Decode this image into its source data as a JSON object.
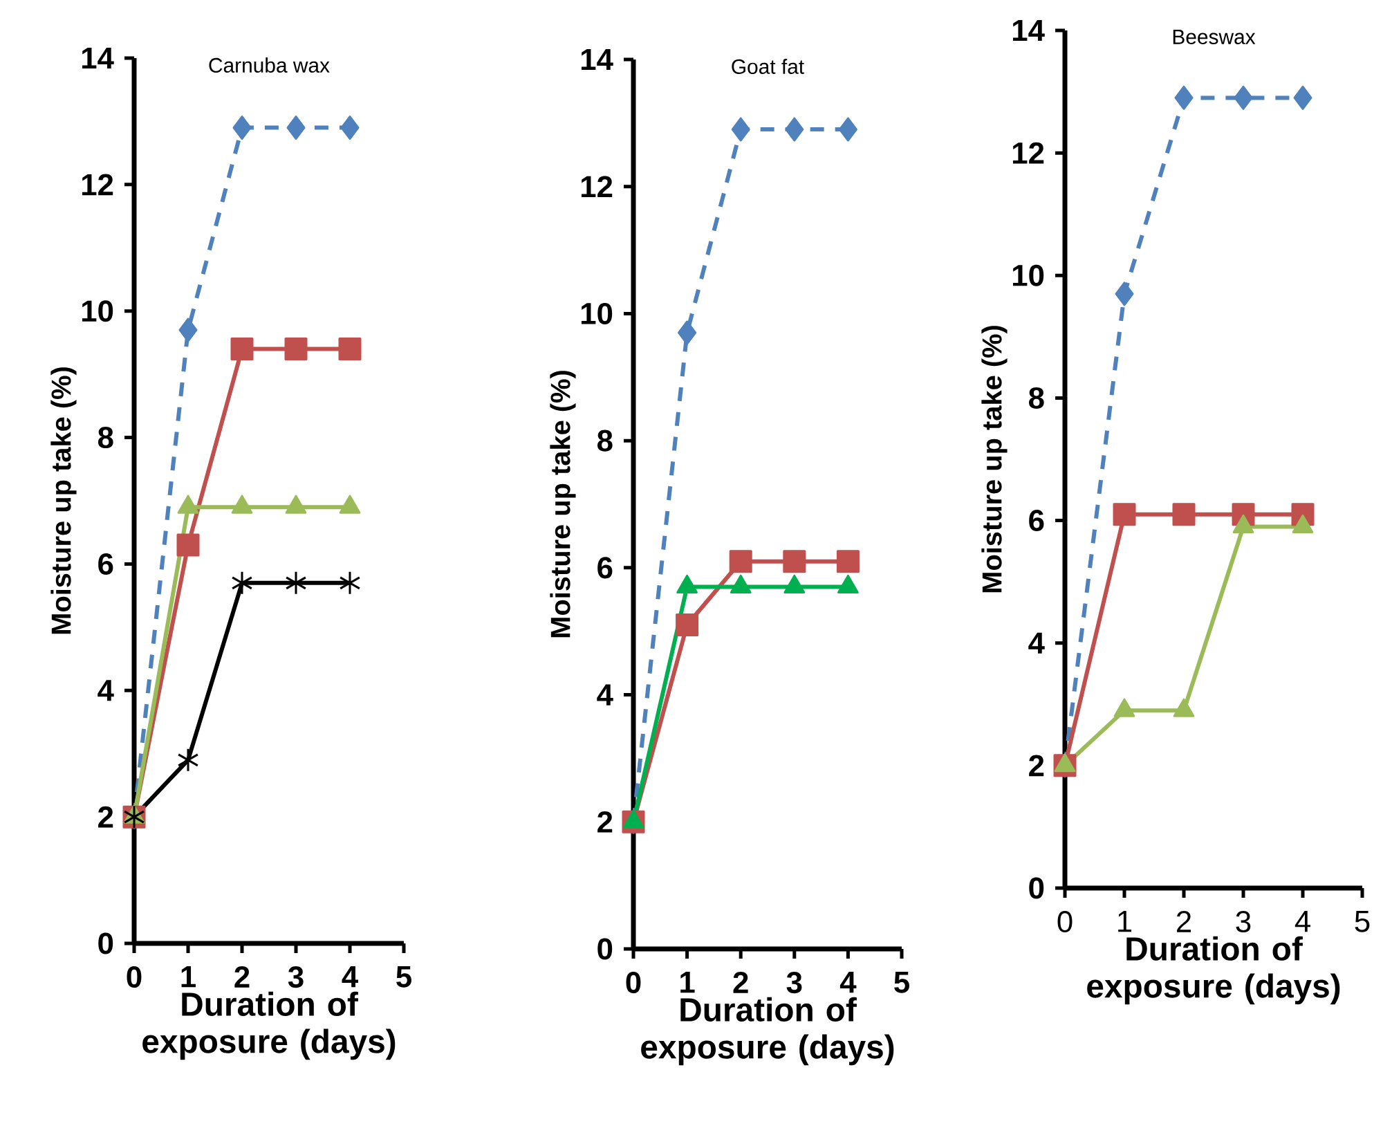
{
  "chart_data": [
    {
      "type": "line",
      "title": "Carnuba wax",
      "xlabel": "Duration of exposure (days)",
      "ylabel": "Moisture up take (%)",
      "x": [
        0,
        1,
        2,
        3,
        4
      ],
      "xlim": [
        0,
        5
      ],
      "xticks": [
        0,
        1,
        2,
        3,
        4,
        5
      ],
      "ylim": [
        0,
        14
      ],
      "yticks": [
        0,
        2,
        4,
        6,
        8,
        10,
        12,
        14
      ],
      "series": [
        {
          "color": "#4f81bd",
          "marker": "diamond",
          "line_style": "dashed",
          "values": [
            2.0,
            9.7,
            12.9,
            12.9,
            12.9
          ]
        },
        {
          "color": "#c0504d",
          "marker": "square",
          "line_style": "solid",
          "values": [
            2.0,
            6.3,
            9.4,
            9.4,
            9.4
          ]
        },
        {
          "color": "#9bbb59",
          "marker": "triangle",
          "line_style": "solid",
          "values": [
            2.0,
            6.9,
            6.9,
            6.9,
            6.9
          ]
        },
        {
          "color": "#000000",
          "marker": "cross",
          "line_style": "solid",
          "values": [
            2.0,
            2.9,
            5.7,
            5.7,
            5.7
          ]
        }
      ]
    },
    {
      "type": "line",
      "title": "Goat fat",
      "xlabel": "**Duration** of exposure (days)",
      "ylabel": "Moisture up take (%)",
      "x": [
        0,
        1,
        2,
        3,
        4
      ],
      "xlim": [
        0,
        5
      ],
      "xticks": [
        0,
        1,
        2,
        3,
        4,
        5
      ],
      "ylim": [
        0,
        14
      ],
      "yticks": [
        0,
        2,
        4,
        6,
        8,
        10,
        12,
        14
      ],
      "series": [
        {
          "color": "#4f81bd",
          "marker": "diamond",
          "line_style": "dashed",
          "values": [
            2.0,
            9.7,
            12.9,
            12.9,
            12.9
          ]
        },
        {
          "color": "#c0504d",
          "marker": "square",
          "line_style": "solid",
          "values": [
            2.0,
            5.1,
            6.1,
            6.1,
            6.1
          ]
        },
        {
          "color": "#00b050",
          "marker": "triangle",
          "line_style": "solid",
          "values": [
            2.0,
            5.7,
            5.7,
            5.7,
            5.7
          ]
        }
      ]
    },
    {
      "type": "line",
      "title": "Beeswax",
      "xlabel": "Duration of exposure (days)",
      "ylabel": "Moisture up take (%)",
      "x": [
        0,
        1,
        2,
        3,
        4
      ],
      "xlim": [
        0,
        5
      ],
      "xticks": [
        0,
        1,
        2,
        3,
        4,
        5
      ],
      "ylim": [
        0,
        14
      ],
      "yticks": [
        0,
        2,
        4,
        6,
        8,
        10,
        12,
        14
      ],
      "series": [
        {
          "color": "#4f81bd",
          "marker": "diamond",
          "line_style": "dashed",
          "values": [
            2.0,
            9.7,
            12.9,
            12.9,
            12.9
          ]
        },
        {
          "color": "#c0504d",
          "marker": "square",
          "line_style": "solid",
          "values": [
            2.0,
            6.1,
            6.1,
            6.1,
            6.1
          ]
        },
        {
          "color": "#9bbb59",
          "marker": "triangle",
          "line_style": "solid",
          "values": [
            2.0,
            2.9,
            2.9,
            5.9,
            5.9
          ]
        }
      ]
    }
  ]
}
